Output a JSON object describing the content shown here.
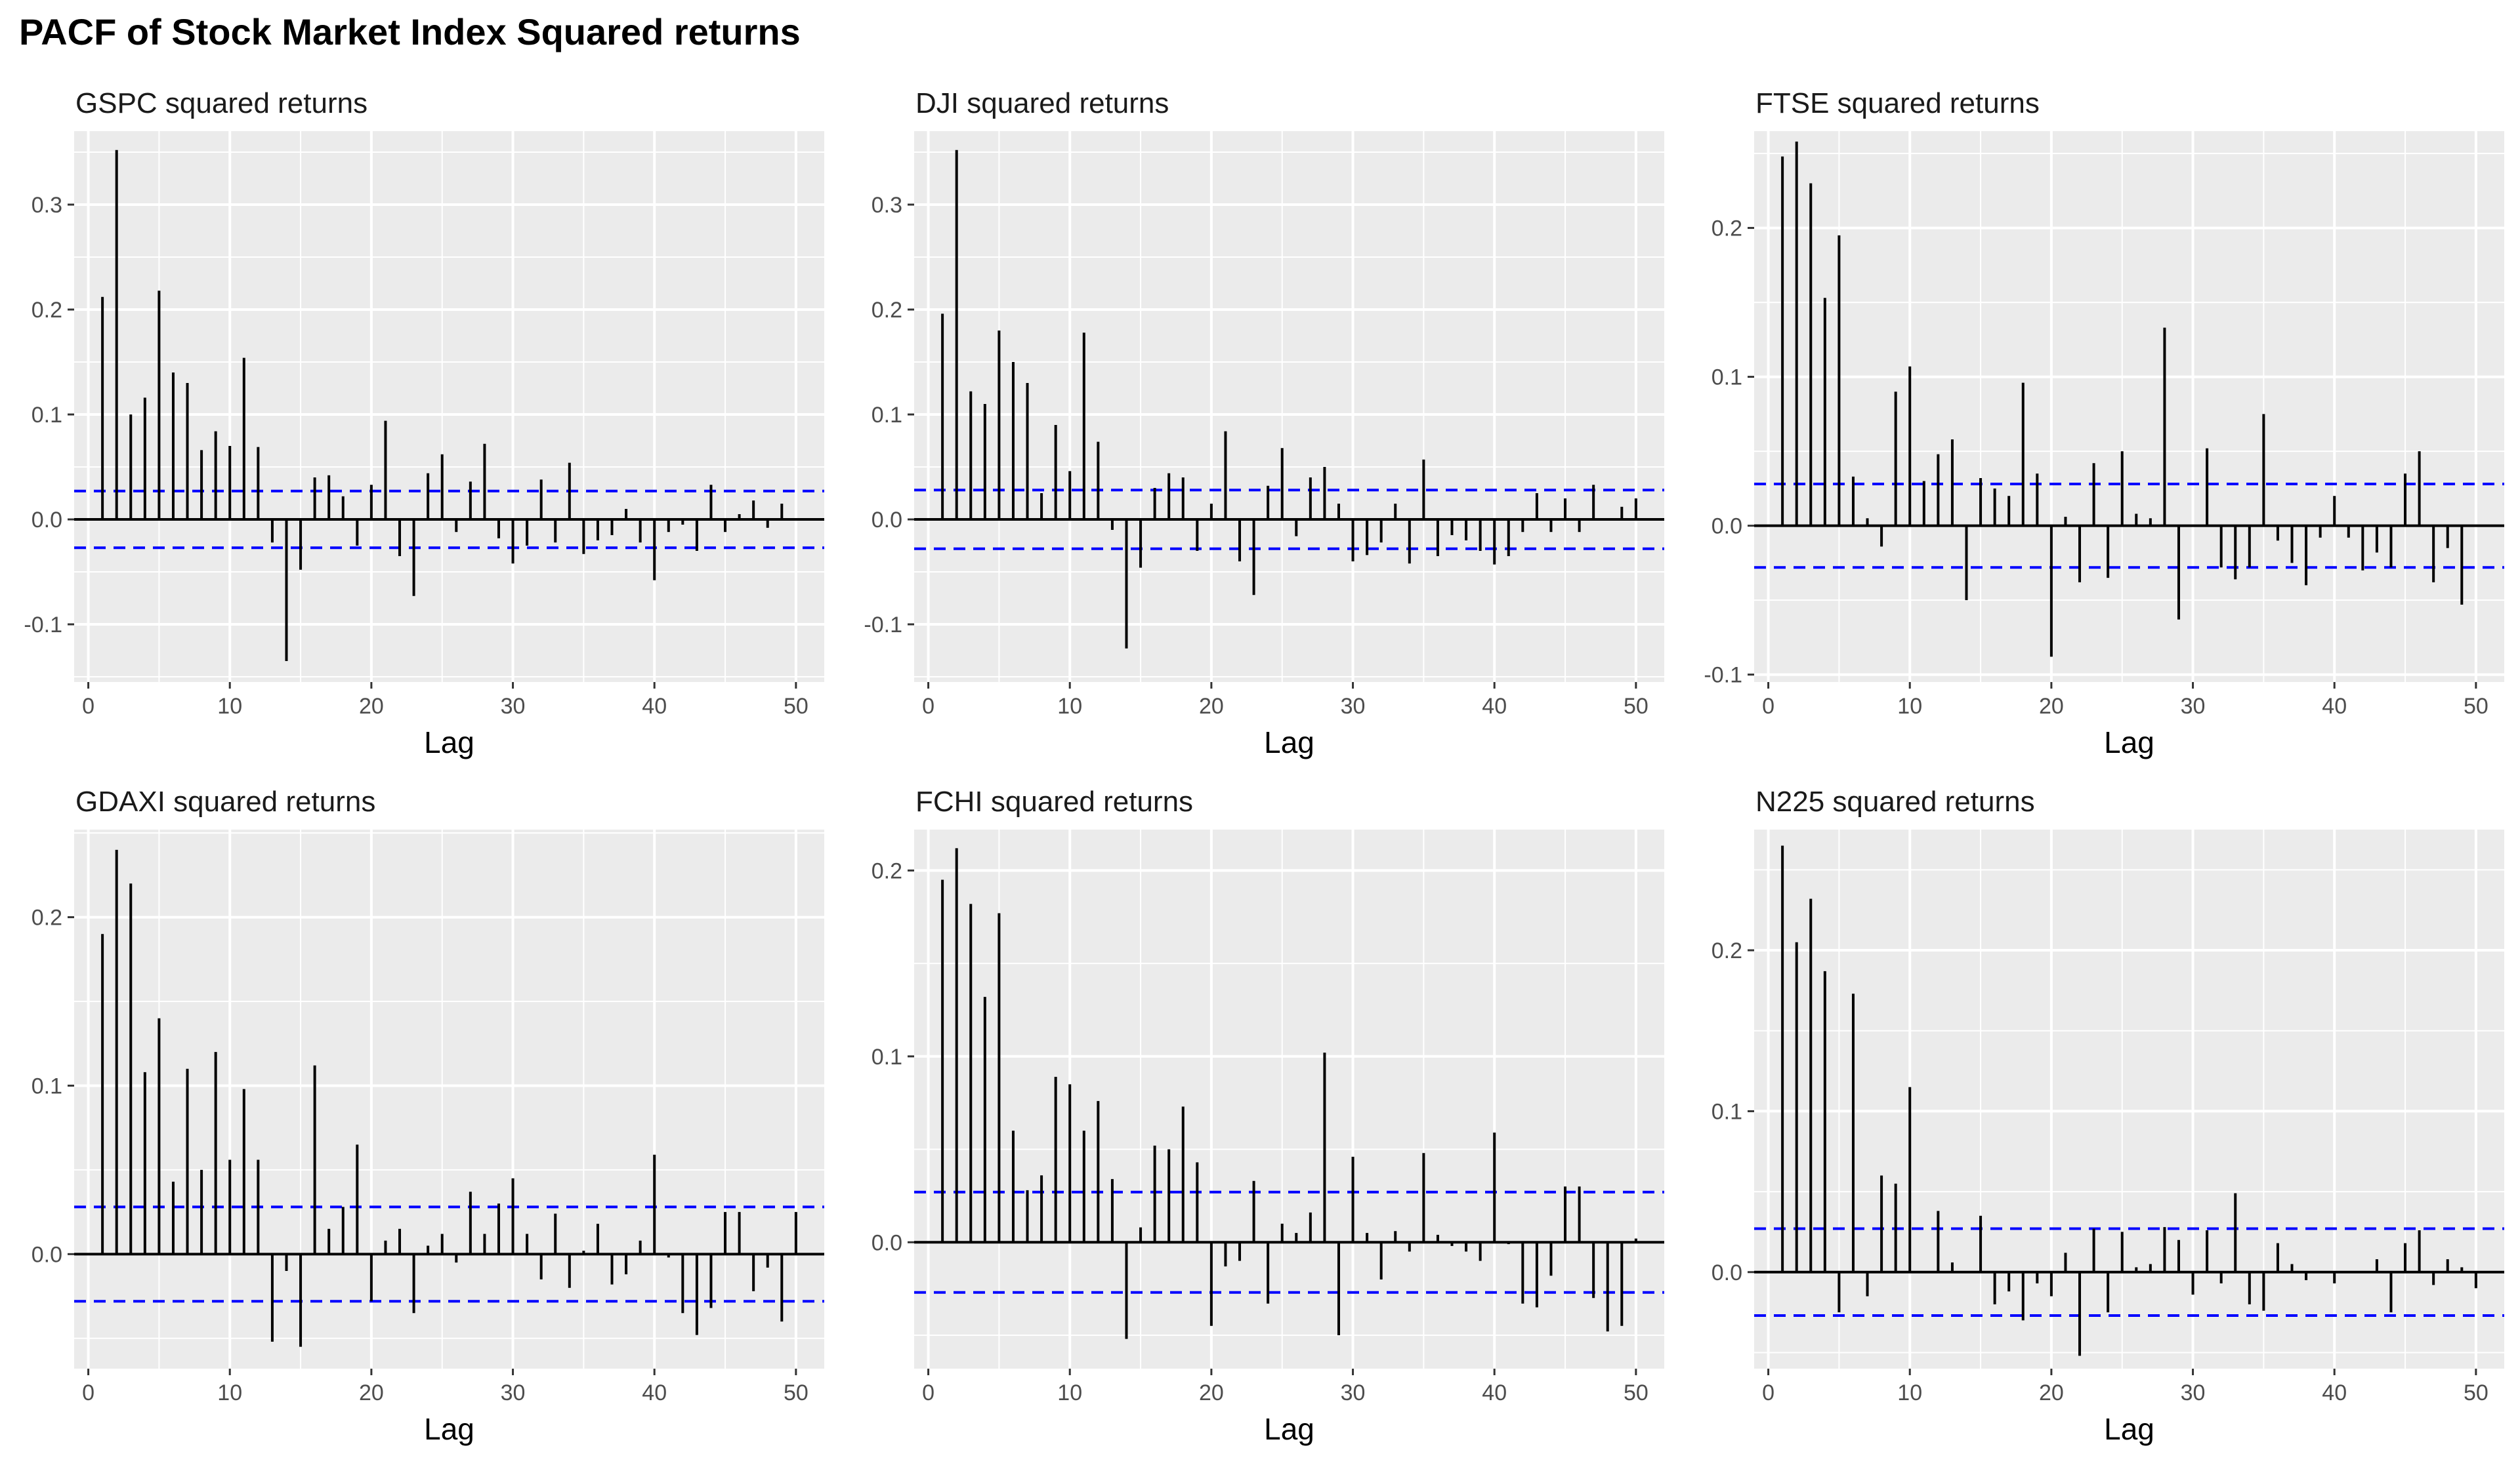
{
  "title": "PACF of Stock Market Index Squared returns",
  "colors": {
    "panel_bg": "#ebebeb",
    "grid": "#ffffff",
    "bar": "#000000",
    "ci": "#0000ff",
    "zero": "#000000"
  },
  "chart_data": [
    {
      "type": "bar",
      "title": "GSPC squared returns",
      "xlabel": "Lag",
      "ylabel": "",
      "xlim": [
        -1,
        52
      ],
      "ylim": [
        -0.155,
        0.37
      ],
      "xticks": [
        0,
        10,
        20,
        30,
        40,
        50
      ],
      "yticks": [
        -0.1,
        0.0,
        0.1,
        0.2,
        0.3
      ],
      "ci": 0.027,
      "x": [
        1,
        2,
        3,
        4,
        5,
        6,
        7,
        8,
        9,
        10,
        11,
        12,
        13,
        14,
        15,
        16,
        17,
        18,
        19,
        20,
        21,
        22,
        23,
        24,
        25,
        26,
        27,
        28,
        29,
        30,
        31,
        32,
        33,
        34,
        35,
        36,
        37,
        38,
        39,
        40,
        41,
        42,
        43,
        44,
        45,
        46,
        47,
        48,
        49,
        50
      ],
      "values": [
        0.212,
        0.352,
        0.1,
        0.116,
        0.218,
        0.14,
        0.13,
        0.066,
        0.084,
        0.07,
        0.154,
        0.069,
        -0.022,
        -0.135,
        -0.048,
        0.04,
        0.042,
        0.022,
        -0.025,
        0.033,
        0.094,
        -0.035,
        -0.073,
        0.044,
        0.062,
        -0.012,
        0.036,
        0.072,
        -0.018,
        -0.042,
        -0.025,
        0.038,
        -0.022,
        0.054,
        -0.033,
        -0.02,
        -0.015,
        0.01,
        -0.022,
        -0.058,
        -0.012,
        -0.005,
        -0.03,
        0.033,
        -0.012,
        0.005,
        0.018,
        -0.008,
        0.015,
        0.0
      ]
    },
    {
      "type": "bar",
      "title": "DJI squared returns",
      "xlabel": "Lag",
      "ylabel": "",
      "xlim": [
        -1,
        52
      ],
      "ylim": [
        -0.155,
        0.37
      ],
      "xticks": [
        0,
        10,
        20,
        30,
        40,
        50
      ],
      "yticks": [
        -0.1,
        0.0,
        0.1,
        0.2,
        0.3
      ],
      "ci": 0.028,
      "x": [
        1,
        2,
        3,
        4,
        5,
        6,
        7,
        8,
        9,
        10,
        11,
        12,
        13,
        14,
        15,
        16,
        17,
        18,
        19,
        20,
        21,
        22,
        23,
        24,
        25,
        26,
        27,
        28,
        29,
        30,
        31,
        32,
        33,
        34,
        35,
        36,
        37,
        38,
        39,
        40,
        41,
        42,
        43,
        44,
        45,
        46,
        47,
        48,
        49,
        50
      ],
      "values": [
        0.196,
        0.352,
        0.122,
        0.11,
        0.18,
        0.15,
        0.13,
        0.025,
        0.09,
        0.046,
        0.178,
        0.074,
        -0.01,
        -0.123,
        -0.046,
        0.03,
        0.044,
        0.04,
        -0.03,
        0.015,
        0.084,
        -0.04,
        -0.072,
        0.032,
        0.068,
        -0.016,
        0.04,
        0.05,
        0.015,
        -0.04,
        -0.034,
        -0.022,
        0.015,
        -0.042,
        0.057,
        -0.035,
        -0.015,
        -0.02,
        -0.03,
        -0.043,
        -0.035,
        -0.012,
        0.025,
        -0.012,
        0.02,
        -0.012,
        0.033,
        0.0,
        0.012,
        0.02
      ]
    },
    {
      "type": "bar",
      "title": "FTSE squared returns",
      "xlabel": "Lag",
      "ylabel": "",
      "xlim": [
        -1,
        52
      ],
      "ylim": [
        -0.105,
        0.265
      ],
      "xticks": [
        0,
        10,
        20,
        30,
        40,
        50
      ],
      "yticks": [
        -0.1,
        0.0,
        0.1,
        0.2
      ],
      "ci": 0.028,
      "x": [
        1,
        2,
        3,
        4,
        5,
        6,
        7,
        8,
        9,
        10,
        11,
        12,
        13,
        14,
        15,
        16,
        17,
        18,
        19,
        20,
        21,
        22,
        23,
        24,
        25,
        26,
        27,
        28,
        29,
        30,
        31,
        32,
        33,
        34,
        35,
        36,
        37,
        38,
        39,
        40,
        41,
        42,
        43,
        44,
        45,
        46,
        47,
        48,
        49
      ],
      "values": [
        0.248,
        0.258,
        0.23,
        0.153,
        0.195,
        0.033,
        0.005,
        -0.014,
        0.09,
        0.107,
        0.03,
        0.048,
        0.058,
        -0.05,
        0.032,
        0.025,
        0.02,
        0.096,
        0.035,
        -0.088,
        0.006,
        -0.038,
        0.042,
        -0.035,
        0.05,
        0.008,
        0.005,
        0.133,
        -0.063,
        0.0,
        0.052,
        -0.028,
        -0.036,
        -0.028,
        0.075,
        -0.01,
        -0.025,
        -0.04,
        -0.008,
        0.02,
        -0.008,
        -0.03,
        -0.018,
        -0.028,
        0.035,
        0.05,
        -0.038,
        -0.015,
        -0.053
      ]
    },
    {
      "type": "bar",
      "title": "GDAXI squared returns",
      "xlabel": "Lag",
      "ylabel": "",
      "xlim": [
        -1,
        52
      ],
      "ylim": [
        -0.068,
        0.252
      ],
      "xticks": [
        0,
        10,
        20,
        30,
        40,
        50
      ],
      "yticks": [
        0.0,
        0.1,
        0.2
      ],
      "ci": 0.028,
      "x": [
        1,
        2,
        3,
        4,
        5,
        6,
        7,
        8,
        9,
        10,
        11,
        12,
        13,
        14,
        15,
        16,
        17,
        18,
        19,
        20,
        21,
        22,
        23,
        24,
        25,
        26,
        27,
        28,
        29,
        30,
        31,
        32,
        33,
        34,
        35,
        36,
        37,
        38,
        39,
        40,
        41,
        42,
        43,
        44,
        45,
        46,
        47,
        48,
        49,
        50
      ],
      "values": [
        0.19,
        0.24,
        0.22,
        0.108,
        0.14,
        0.043,
        0.11,
        0.05,
        0.12,
        0.056,
        0.098,
        0.056,
        -0.052,
        -0.01,
        -0.055,
        0.112,
        0.015,
        0.028,
        0.065,
        -0.028,
        0.008,
        0.015,
        -0.035,
        0.005,
        0.012,
        -0.005,
        0.037,
        0.012,
        0.03,
        0.045,
        0.012,
        -0.015,
        0.024,
        -0.02,
        0.002,
        0.018,
        -0.018,
        -0.012,
        0.008,
        0.059,
        -0.002,
        -0.035,
        -0.048,
        -0.032,
        0.025,
        0.025,
        -0.022,
        -0.008,
        -0.04,
        0.025
      ]
    },
    {
      "type": "bar",
      "title": "FCHI squared returns",
      "xlabel": "Lag",
      "ylabel": "",
      "xlim": [
        -1,
        52
      ],
      "ylim": [
        -0.068,
        0.222
      ],
      "xticks": [
        0,
        10,
        20,
        30,
        40,
        50
      ],
      "yticks": [
        0.0,
        0.1,
        0.2
      ],
      "ci": 0.027,
      "x": [
        1,
        2,
        3,
        4,
        5,
        6,
        7,
        8,
        9,
        10,
        11,
        12,
        13,
        14,
        15,
        16,
        17,
        18,
        19,
        20,
        21,
        22,
        23,
        24,
        25,
        26,
        27,
        28,
        29,
        30,
        31,
        32,
        33,
        34,
        35,
        36,
        37,
        38,
        39,
        40,
        41,
        42,
        43,
        44,
        45,
        46,
        47,
        48,
        49,
        50
      ],
      "values": [
        0.195,
        0.212,
        0.182,
        0.132,
        0.177,
        0.06,
        0.028,
        0.036,
        0.089,
        0.085,
        0.06,
        0.076,
        0.034,
        -0.052,
        0.008,
        0.052,
        0.05,
        0.073,
        0.043,
        -0.045,
        -0.013,
        -0.01,
        0.033,
        -0.033,
        0.01,
        0.005,
        0.016,
        0.102,
        -0.05,
        0.046,
        0.005,
        -0.02,
        0.006,
        -0.005,
        0.048,
        0.004,
        -0.002,
        -0.005,
        -0.01,
        0.059,
        -0.001,
        -0.033,
        -0.035,
        -0.018,
        0.03,
        0.03,
        -0.03,
        -0.048,
        -0.045,
        0.002
      ]
    },
    {
      "type": "bar",
      "title": "N225 squared returns",
      "xlabel": "Lag",
      "ylabel": "",
      "xlim": [
        -1,
        52
      ],
      "ylim": [
        -0.06,
        0.275
      ],
      "xticks": [
        0,
        10,
        20,
        30,
        40,
        50
      ],
      "yticks": [
        0.0,
        0.1,
        0.2
      ],
      "ci": 0.027,
      "x": [
        1,
        2,
        3,
        4,
        5,
        6,
        7,
        8,
        9,
        10,
        11,
        12,
        13,
        14,
        15,
        16,
        17,
        18,
        19,
        20,
        21,
        22,
        23,
        24,
        25,
        26,
        27,
        28,
        29,
        30,
        31,
        32,
        33,
        34,
        35,
        36,
        37,
        38,
        39,
        40,
        41,
        42,
        43,
        44,
        45,
        46,
        47,
        48,
        49,
        50
      ],
      "values": [
        0.265,
        0.205,
        0.232,
        0.187,
        -0.025,
        0.173,
        -0.015,
        0.06,
        0.055,
        0.115,
        0.0,
        0.038,
        0.006,
        0.0,
        0.035,
        -0.02,
        -0.012,
        -0.03,
        -0.007,
        -0.015,
        0.012,
        -0.052,
        0.027,
        -0.025,
        0.025,
        0.003,
        0.005,
        0.028,
        0.02,
        -0.014,
        0.026,
        -0.007,
        0.049,
        -0.02,
        -0.024,
        0.018,
        0.005,
        -0.005,
        0.0,
        -0.007,
        0.0,
        0.0,
        0.008,
        -0.025,
        0.018,
        0.026,
        -0.008,
        0.008,
        0.003,
        -0.01
      ]
    }
  ]
}
